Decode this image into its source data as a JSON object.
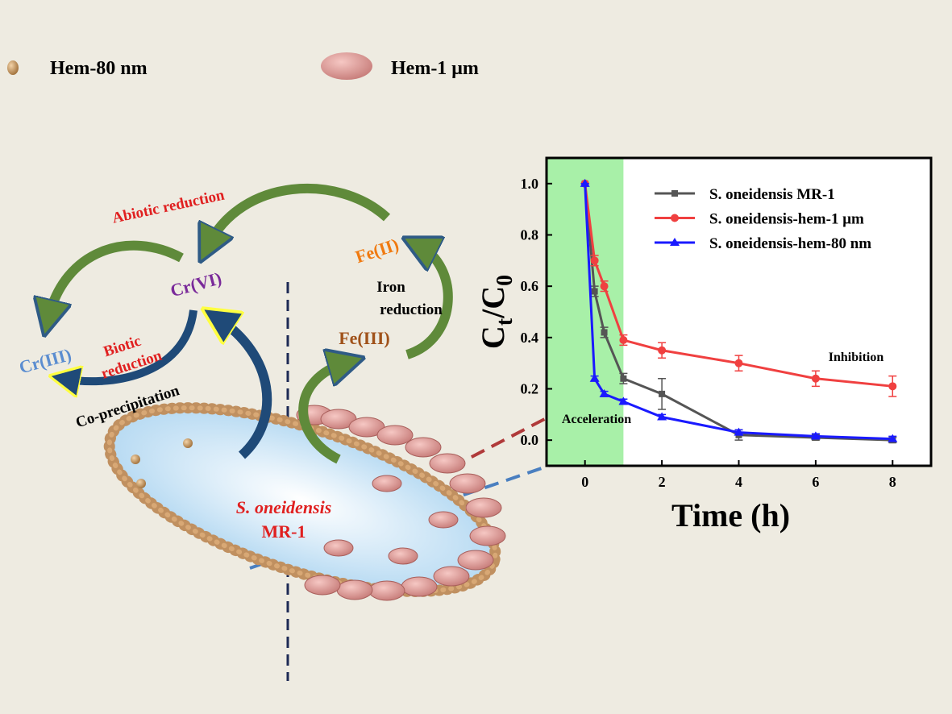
{
  "legend": {
    "items": [
      "Hem-80 nm",
      "Hem-1 μm"
    ]
  },
  "labels": {
    "abiotic": "Abiotic reduction",
    "cr6": "Cr(VI)",
    "cr3": "Cr(III)",
    "biotic": [
      "Biotic",
      "reduction"
    ],
    "coprecipitation": "Co-precipitation",
    "fe2": "Fe(II)",
    "fe3": "Fe(III)",
    "iron": [
      "Iron",
      "reduction"
    ],
    "cell": [
      "S. oneidensis",
      "MR-1"
    ]
  },
  "chart_data": {
    "type": "line",
    "ylabel": [
      "C",
      "t",
      "/C",
      "0"
    ],
    "xlabel": "Time (h)",
    "x": [
      0,
      0.25,
      0.5,
      1,
      2,
      4,
      6,
      8
    ],
    "series": [
      {
        "name": "S. oneidensis MR-1",
        "color": "#555555",
        "marker": "square",
        "values": [
          1.0,
          0.58,
          0.42,
          0.24,
          0.18,
          0.02,
          0.01,
          0.0
        ],
        "errors": [
          0,
          0.02,
          0.02,
          0.02,
          0.06,
          0.02,
          0.01,
          0.01
        ]
      },
      {
        "name": "S. oneidensis-hem-1 μm",
        "color": "#f04040",
        "marker": "circle",
        "values": [
          1.0,
          0.7,
          0.6,
          0.39,
          0.35,
          0.3,
          0.24,
          0.21
        ],
        "errors": [
          0,
          0.02,
          0.02,
          0.02,
          0.03,
          0.03,
          0.03,
          0.04
        ]
      },
      {
        "name": "S. oneidensis-hem-80 nm",
        "color": "#1a1aff",
        "marker": "triangle",
        "values": [
          1.0,
          0.24,
          0.18,
          0.15,
          0.09,
          0.03,
          0.015,
          0.005
        ],
        "errors": [
          0,
          0.01,
          0.01,
          0.01,
          0.01,
          0.01,
          0.01,
          0.01
        ]
      }
    ],
    "xlim": [
      -1,
      9
    ],
    "ylim": [
      -0.1,
      1.1
    ],
    "xticks": [
      0,
      2,
      4,
      6,
      8
    ],
    "yticks": [
      {
        "value": 0,
        "label": "0.0"
      },
      {
        "value": 0.2,
        "label": "0.2"
      },
      {
        "value": 0.4,
        "label": "0.4"
      },
      {
        "value": 0.6,
        "label": "0.6"
      },
      {
        "value": 0.8,
        "label": "0.8"
      },
      {
        "value": 1.0,
        "label": "1.0"
      }
    ],
    "highlight_span": [
      -1,
      1
    ],
    "highlight_color": "#a8f0a8",
    "annotations": [
      "Acceleration",
      "Inhibition"
    ]
  }
}
